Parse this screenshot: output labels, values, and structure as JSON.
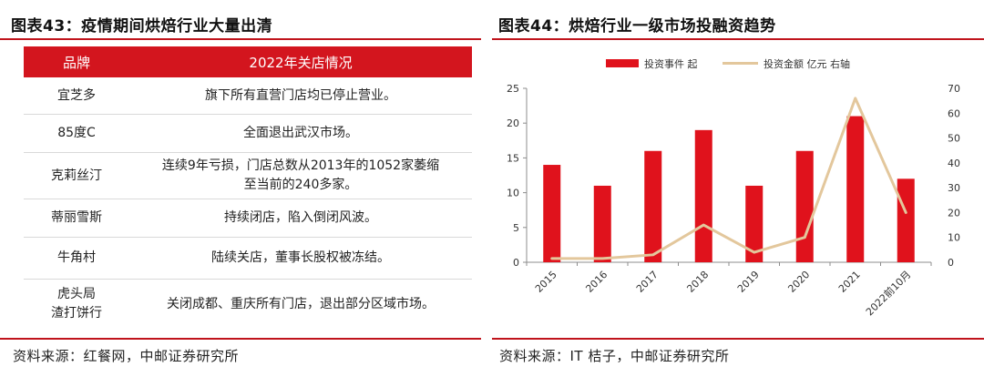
{
  "left": {
    "title": "图表43：疫情期间烘焙行业大量出清",
    "table": {
      "headers": [
        "品牌",
        "2022年关店情况"
      ],
      "rows": [
        {
          "brand": [
            "宜芝多"
          ],
          "desc": [
            "旗下所有直营门店均已停止营业。"
          ]
        },
        {
          "brand": [
            "85度C"
          ],
          "desc": [
            "全面退出武汉市场。"
          ]
        },
        {
          "brand": [
            "克莉丝汀"
          ],
          "desc": [
            "连续9年亏损，门店总数从2013年的1052家萎缩",
            "至当前的240多家。"
          ]
        },
        {
          "brand": [
            "蒂丽雪斯"
          ],
          "desc": [
            "持续闭店，陷入倒闭风波。"
          ]
        },
        {
          "brand": [
            "牛角村"
          ],
          "desc": [
            "陆续关店，董事长股权被冻结。"
          ]
        },
        {
          "brand": [
            "虎头局",
            "渣打饼行"
          ],
          "desc": [
            "关闭成都、重庆所有门店，退出部分区域市场。"
          ]
        }
      ]
    },
    "source": "资料来源：红餐网，中邮证券研究所"
  },
  "right": {
    "title": "图表44：烘焙行业一级市场投融资趋势",
    "source": "资料来源：IT 桔子，中邮证券研究所"
  },
  "colors": {
    "accent": "#c0141c",
    "bar": "#e0121c",
    "line": "#e3c79c",
    "header_bg": "#d3151e"
  },
  "chart_data": {
    "type": "bar",
    "categories": [
      "2015",
      "2016",
      "2017",
      "2018",
      "2019",
      "2020",
      "2021",
      "2022前10月"
    ],
    "series": [
      {
        "name": "投资事件 起",
        "type": "bar",
        "axis": "left",
        "values": [
          14,
          11,
          16,
          19,
          11,
          16,
          21,
          12
        ]
      },
      {
        "name": "投资金额 亿元 右轴",
        "type": "line",
        "axis": "right",
        "values": [
          1.5,
          1.5,
          3,
          15,
          4,
          10,
          66,
          20
        ]
      }
    ],
    "y_left": {
      "min": 0,
      "max": 25,
      "ticks": [
        0,
        5,
        10,
        15,
        20,
        25
      ]
    },
    "y_right": {
      "min": 0,
      "max": 70,
      "ticks": [
        0,
        10,
        20,
        30,
        40,
        50,
        60,
        70
      ]
    },
    "legend_position": "top",
    "grid": false
  }
}
